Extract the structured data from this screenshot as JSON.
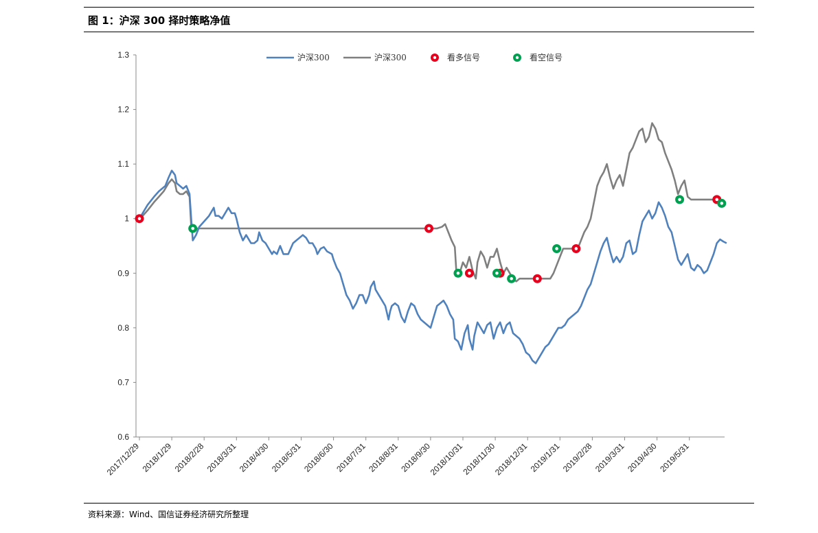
{
  "header": {
    "title": "图 1：沪深 300 择时策略净值"
  },
  "footer": {
    "source": "资料来源：Wind、国信证券经济研究所整理"
  },
  "colors": {
    "blue": "#4F81BD",
    "gray": "#7F7F7F",
    "long_signal": "#E8001C",
    "short_signal": "#00A050"
  },
  "chart_data": {
    "type": "line",
    "title": "沪深 300 择时策略净值",
    "ylim": [
      0.6,
      1.3
    ],
    "y_ticks": [
      0.6,
      0.7,
      0.8,
      0.9,
      1.0,
      1.1,
      1.2,
      1.3
    ],
    "y_tick_labels": [
      "0.6",
      "0.7",
      "0.8",
      "0.9",
      "1",
      "1.1",
      "1.2",
      "1.3"
    ],
    "x_range": [
      0,
      18.2
    ],
    "x_tick_labels": [
      "2017/12/29",
      "2018/1/29",
      "2018/2/28",
      "2018/3/31",
      "2018/4/30",
      "2018/5/31",
      "2018/6/30",
      "2018/7/31",
      "2018/8/31",
      "2018/9/30",
      "2018/10/31",
      "2018/11/30",
      "2018/12/31",
      "2019/1/31",
      "2019/2/28",
      "2019/3/31",
      "2019/4/30",
      "2019/5/31"
    ],
    "legend": {
      "position": "top-center",
      "entries": [
        {
          "label": "沪深300",
          "kind": "line",
          "color": "#4F81BD"
        },
        {
          "label": "沪深300",
          "kind": "line",
          "color": "#7F7F7F"
        },
        {
          "label": "看多信号",
          "kind": "marker",
          "color": "#E8001C"
        },
        {
          "label": "看空信号",
          "kind": "marker",
          "color": "#00A050"
        }
      ]
    },
    "series": [
      {
        "name": "沪深300",
        "color": "#4F81BD",
        "points": [
          [
            0,
            1.0
          ],
          [
            0.1,
            1.01
          ],
          [
            0.25,
            1.025
          ],
          [
            0.45,
            1.04
          ],
          [
            0.6,
            1.05
          ],
          [
            0.8,
            1.06
          ],
          [
            0.9,
            1.075
          ],
          [
            1.0,
            1.088
          ],
          [
            1.1,
            1.08
          ],
          [
            1.15,
            1.065
          ],
          [
            1.25,
            1.06
          ],
          [
            1.35,
            1.055
          ],
          [
            1.45,
            1.06
          ],
          [
            1.55,
            1.045
          ],
          [
            1.6,
            1.0
          ],
          [
            1.65,
            0.96
          ],
          [
            1.75,
            0.97
          ],
          [
            1.85,
            0.985
          ],
          [
            2.0,
            0.995
          ],
          [
            2.15,
            1.005
          ],
          [
            2.3,
            1.02
          ],
          [
            2.35,
            1.005
          ],
          [
            2.45,
            1.005
          ],
          [
            2.55,
            1.0
          ],
          [
            2.65,
            1.01
          ],
          [
            2.75,
            1.02
          ],
          [
            2.85,
            1.01
          ],
          [
            2.95,
            1.01
          ],
          [
            3.0,
            1.0
          ],
          [
            3.1,
            0.975
          ],
          [
            3.2,
            0.96
          ],
          [
            3.3,
            0.97
          ],
          [
            3.45,
            0.955
          ],
          [
            3.55,
            0.955
          ],
          [
            3.65,
            0.96
          ],
          [
            3.7,
            0.975
          ],
          [
            3.8,
            0.96
          ],
          [
            3.9,
            0.955
          ],
          [
            4.0,
            0.945
          ],
          [
            4.1,
            0.935
          ],
          [
            4.15,
            0.94
          ],
          [
            4.25,
            0.935
          ],
          [
            4.35,
            0.95
          ],
          [
            4.45,
            0.935
          ],
          [
            4.6,
            0.935
          ],
          [
            4.75,
            0.955
          ],
          [
            4.85,
            0.96
          ],
          [
            4.95,
            0.965
          ],
          [
            5.05,
            0.97
          ],
          [
            5.15,
            0.965
          ],
          [
            5.25,
            0.955
          ],
          [
            5.35,
            0.955
          ],
          [
            5.45,
            0.945
          ],
          [
            5.5,
            0.935
          ],
          [
            5.6,
            0.945
          ],
          [
            5.7,
            0.948
          ],
          [
            5.8,
            0.94
          ],
          [
            5.95,
            0.935
          ],
          [
            6.0,
            0.925
          ],
          [
            6.1,
            0.91
          ],
          [
            6.2,
            0.9
          ],
          [
            6.3,
            0.88
          ],
          [
            6.4,
            0.86
          ],
          [
            6.5,
            0.85
          ],
          [
            6.6,
            0.835
          ],
          [
            6.7,
            0.845
          ],
          [
            6.8,
            0.86
          ],
          [
            6.9,
            0.86
          ],
          [
            7.0,
            0.845
          ],
          [
            7.1,
            0.86
          ],
          [
            7.15,
            0.875
          ],
          [
            7.25,
            0.885
          ],
          [
            7.3,
            0.87
          ],
          [
            7.4,
            0.86
          ],
          [
            7.5,
            0.85
          ],
          [
            7.6,
            0.84
          ],
          [
            7.7,
            0.815
          ],
          [
            7.75,
            0.83
          ],
          [
            7.8,
            0.84
          ],
          [
            7.9,
            0.845
          ],
          [
            8.0,
            0.84
          ],
          [
            8.1,
            0.82
          ],
          [
            8.2,
            0.81
          ],
          [
            8.3,
            0.83
          ],
          [
            8.4,
            0.845
          ],
          [
            8.5,
            0.84
          ],
          [
            8.6,
            0.825
          ],
          [
            8.7,
            0.815
          ],
          [
            8.8,
            0.81
          ],
          [
            8.9,
            0.805
          ],
          [
            9.0,
            0.8
          ],
          [
            9.1,
            0.82
          ],
          [
            9.2,
            0.84
          ],
          [
            9.3,
            0.845
          ],
          [
            9.4,
            0.85
          ],
          [
            9.5,
            0.84
          ],
          [
            9.6,
            0.825
          ],
          [
            9.7,
            0.815
          ],
          [
            9.75,
            0.78
          ],
          [
            9.85,
            0.775
          ],
          [
            9.95,
            0.76
          ],
          [
            10.05,
            0.79
          ],
          [
            10.15,
            0.805
          ],
          [
            10.2,
            0.78
          ],
          [
            10.3,
            0.76
          ],
          [
            10.35,
            0.785
          ],
          [
            10.45,
            0.81
          ],
          [
            10.55,
            0.8
          ],
          [
            10.65,
            0.79
          ],
          [
            10.75,
            0.805
          ],
          [
            10.85,
            0.81
          ],
          [
            10.95,
            0.78
          ],
          [
            11.05,
            0.8
          ],
          [
            11.15,
            0.81
          ],
          [
            11.25,
            0.79
          ],
          [
            11.35,
            0.805
          ],
          [
            11.45,
            0.81
          ],
          [
            11.55,
            0.79
          ],
          [
            11.65,
            0.785
          ],
          [
            11.75,
            0.78
          ],
          [
            11.85,
            0.77
          ],
          [
            11.95,
            0.755
          ],
          [
            12.05,
            0.75
          ],
          [
            12.15,
            0.74
          ],
          [
            12.25,
            0.735
          ],
          [
            12.35,
            0.745
          ],
          [
            12.45,
            0.755
          ],
          [
            12.55,
            0.765
          ],
          [
            12.65,
            0.77
          ],
          [
            12.75,
            0.78
          ],
          [
            12.85,
            0.79
          ],
          [
            12.95,
            0.8
          ],
          [
            13.05,
            0.8
          ],
          [
            13.15,
            0.805
          ],
          [
            13.25,
            0.815
          ],
          [
            13.35,
            0.82
          ],
          [
            13.45,
            0.825
          ],
          [
            13.55,
            0.83
          ],
          [
            13.65,
            0.84
          ],
          [
            13.75,
            0.855
          ],
          [
            13.85,
            0.87
          ],
          [
            13.95,
            0.88
          ],
          [
            14.05,
            0.9
          ],
          [
            14.15,
            0.92
          ],
          [
            14.25,
            0.94
          ],
          [
            14.35,
            0.955
          ],
          [
            14.45,
            0.965
          ],
          [
            14.55,
            0.94
          ],
          [
            14.65,
            0.92
          ],
          [
            14.75,
            0.93
          ],
          [
            14.85,
            0.92
          ],
          [
            14.95,
            0.93
          ],
          [
            15.05,
            0.955
          ],
          [
            15.15,
            0.96
          ],
          [
            15.25,
            0.935
          ],
          [
            15.35,
            0.94
          ],
          [
            15.45,
            0.97
          ],
          [
            15.55,
            0.995
          ],
          [
            15.65,
            1.005
          ],
          [
            15.75,
            1.015
          ],
          [
            15.85,
            1.0
          ],
          [
            15.95,
            1.01
          ],
          [
            16.05,
            1.03
          ],
          [
            16.15,
            1.02
          ],
          [
            16.25,
            1.005
          ],
          [
            16.35,
            0.985
          ],
          [
            16.45,
            0.975
          ],
          [
            16.55,
            0.95
          ],
          [
            16.65,
            0.925
          ],
          [
            16.75,
            0.915
          ],
          [
            16.85,
            0.925
          ],
          [
            16.95,
            0.935
          ],
          [
            17.05,
            0.91
          ],
          [
            17.15,
            0.905
          ],
          [
            17.25,
            0.915
          ],
          [
            17.35,
            0.91
          ],
          [
            17.45,
            0.9
          ],
          [
            17.55,
            0.905
          ],
          [
            17.65,
            0.92
          ],
          [
            17.75,
            0.935
          ],
          [
            17.85,
            0.955
          ],
          [
            17.95,
            0.962
          ],
          [
            18.05,
            0.958
          ],
          [
            18.15,
            0.955
          ]
        ]
      },
      {
        "name": "沪深300",
        "color": "#7F7F7F",
        "points": [
          [
            0,
            1.0
          ],
          [
            0.1,
            1.005
          ],
          [
            0.25,
            1.015
          ],
          [
            0.45,
            1.03
          ],
          [
            0.6,
            1.04
          ],
          [
            0.75,
            1.05
          ],
          [
            0.9,
            1.065
          ],
          [
            1.0,
            1.072
          ],
          [
            1.1,
            1.065
          ],
          [
            1.15,
            1.05
          ],
          [
            1.25,
            1.045
          ],
          [
            1.35,
            1.045
          ],
          [
            1.45,
            1.05
          ],
          [
            1.55,
            1.04
          ],
          [
            1.6,
            0.985
          ],
          [
            1.65,
            0.982
          ],
          [
            2.0,
            0.982
          ],
          [
            3.0,
            0.982
          ],
          [
            4.0,
            0.982
          ],
          [
            5.0,
            0.982
          ],
          [
            6.0,
            0.982
          ],
          [
            7.0,
            0.982
          ],
          [
            8.0,
            0.982
          ],
          [
            9.0,
            0.982
          ],
          [
            9.2,
            0.982
          ],
          [
            9.35,
            0.985
          ],
          [
            9.45,
            0.99
          ],
          [
            9.55,
            0.975
          ],
          [
            9.65,
            0.96
          ],
          [
            9.75,
            0.948
          ],
          [
            9.8,
            0.9
          ],
          [
            9.9,
            0.9
          ],
          [
            10.0,
            0.92
          ],
          [
            10.1,
            0.91
          ],
          [
            10.2,
            0.93
          ],
          [
            10.3,
            0.905
          ],
          [
            10.4,
            0.89
          ],
          [
            10.45,
            0.92
          ],
          [
            10.55,
            0.94
          ],
          [
            10.65,
            0.93
          ],
          [
            10.75,
            0.91
          ],
          [
            10.85,
            0.93
          ],
          [
            10.95,
            0.93
          ],
          [
            11.05,
            0.945
          ],
          [
            11.15,
            0.92
          ],
          [
            11.25,
            0.9
          ],
          [
            11.35,
            0.91
          ],
          [
            11.45,
            0.9
          ],
          [
            11.55,
            0.89
          ],
          [
            11.65,
            0.885
          ],
          [
            11.75,
            0.89
          ],
          [
            11.85,
            0.89
          ],
          [
            12.0,
            0.89
          ],
          [
            12.5,
            0.89
          ],
          [
            12.7,
            0.89
          ],
          [
            12.8,
            0.9
          ],
          [
            12.9,
            0.915
          ],
          [
            13.0,
            0.93
          ],
          [
            13.1,
            0.945
          ],
          [
            13.3,
            0.945
          ],
          [
            13.55,
            0.945
          ],
          [
            13.65,
            0.96
          ],
          [
            13.75,
            0.975
          ],
          [
            13.85,
            0.985
          ],
          [
            13.95,
            1.0
          ],
          [
            14.05,
            1.03
          ],
          [
            14.15,
            1.06
          ],
          [
            14.25,
            1.075
          ],
          [
            14.35,
            1.085
          ],
          [
            14.45,
            1.1
          ],
          [
            14.55,
            1.075
          ],
          [
            14.65,
            1.055
          ],
          [
            14.75,
            1.07
          ],
          [
            14.85,
            1.08
          ],
          [
            14.95,
            1.06
          ],
          [
            15.05,
            1.09
          ],
          [
            15.15,
            1.12
          ],
          [
            15.25,
            1.13
          ],
          [
            15.35,
            1.145
          ],
          [
            15.45,
            1.16
          ],
          [
            15.55,
            1.165
          ],
          [
            15.65,
            1.14
          ],
          [
            15.75,
            1.15
          ],
          [
            15.85,
            1.175
          ],
          [
            15.95,
            1.165
          ],
          [
            16.05,
            1.145
          ],
          [
            16.15,
            1.14
          ],
          [
            16.25,
            1.12
          ],
          [
            16.35,
            1.105
          ],
          [
            16.45,
            1.09
          ],
          [
            16.55,
            1.07
          ],
          [
            16.65,
            1.045
          ],
          [
            16.75,
            1.06
          ],
          [
            16.85,
            1.07
          ],
          [
            16.95,
            1.04
          ],
          [
            17.05,
            1.035
          ],
          [
            17.2,
            1.035
          ],
          [
            17.5,
            1.035
          ],
          [
            17.8,
            1.035
          ],
          [
            17.9,
            1.035
          ],
          [
            17.95,
            1.03
          ],
          [
            18.0,
            1.028
          ]
        ]
      }
    ],
    "long_signals": [
      [
        0,
        1.0
      ],
      [
        8.95,
        0.982
      ],
      [
        10.2,
        0.9
      ],
      [
        11.15,
        0.9
      ],
      [
        12.3,
        0.89
      ],
      [
        13.5,
        0.945
      ],
      [
        17.85,
        1.035
      ]
    ],
    "short_signals": [
      [
        1.65,
        0.982
      ],
      [
        9.85,
        0.9
      ],
      [
        11.05,
        0.9
      ],
      [
        11.5,
        0.89
      ],
      [
        12.9,
        0.945
      ],
      [
        16.7,
        1.035
      ],
      [
        18.0,
        1.028
      ]
    ]
  }
}
